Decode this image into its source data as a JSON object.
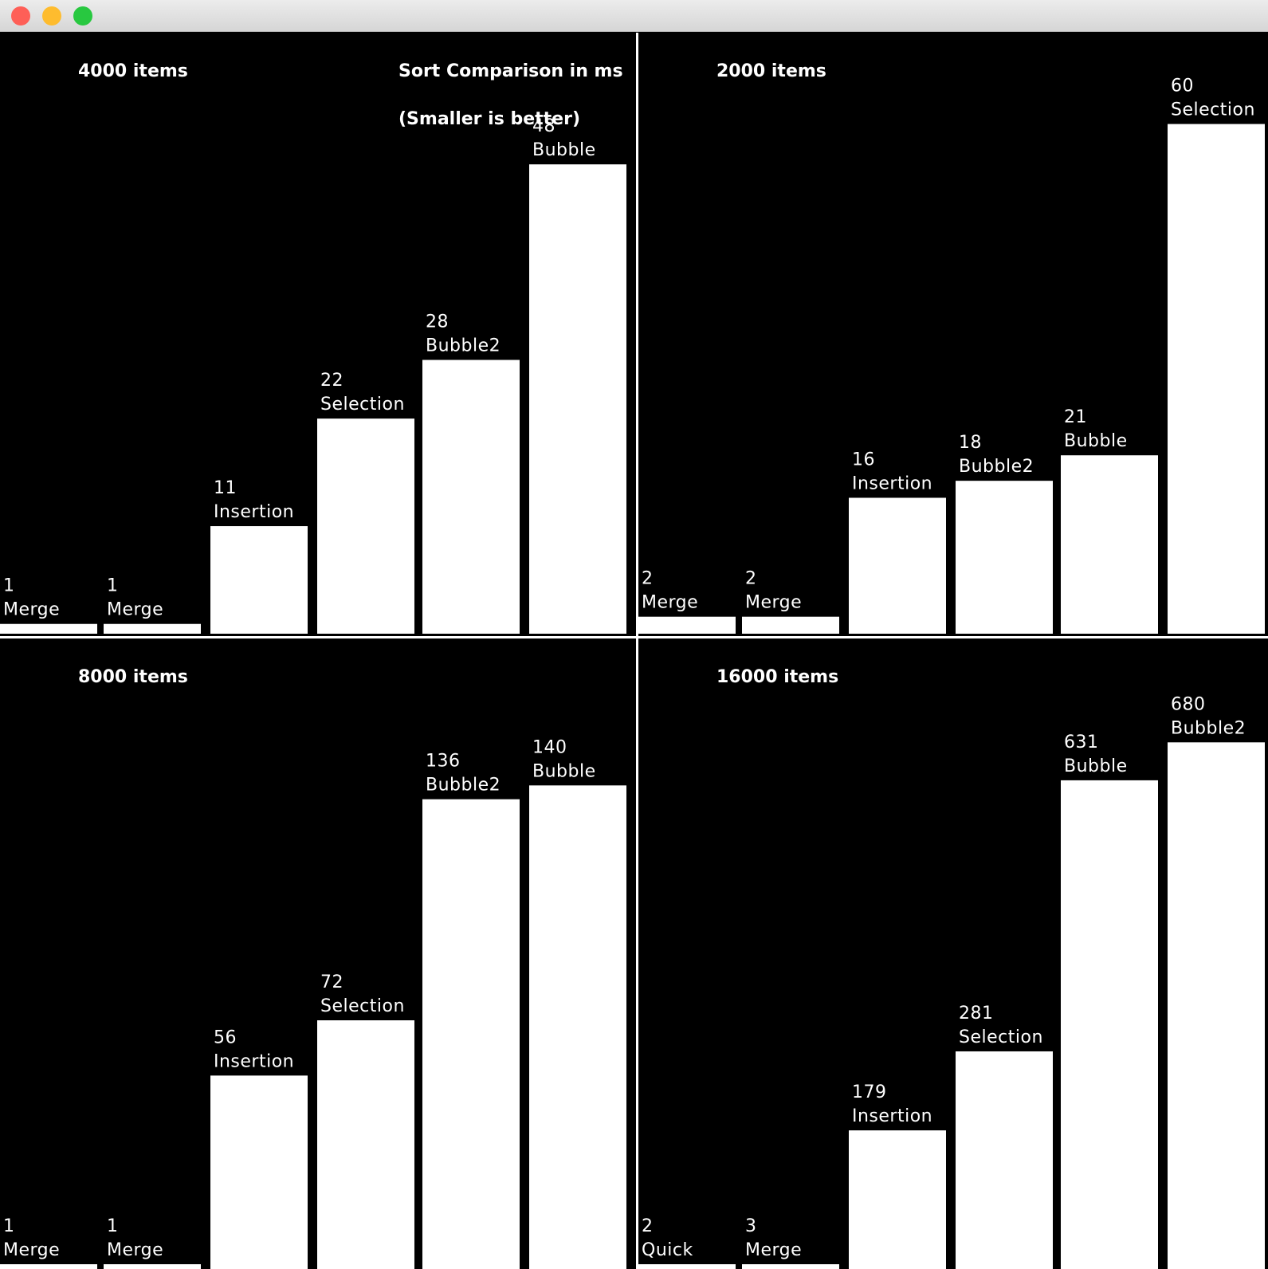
{
  "window": {
    "controls": {
      "close_color": "#fe5f57",
      "minimize_color": "#febc2e",
      "maximize_color": "#28c840"
    }
  },
  "heading": {
    "line1": "Sort Comparison in ms",
    "line2": "(Smaller is better)"
  },
  "colors": {
    "background": "#000000",
    "bar": "#ffffff",
    "text": "#ffffff"
  },
  "chart_data": [
    {
      "type": "bar",
      "title": "4000 items",
      "categories": [
        "Merge",
        "Merge",
        "Insertion",
        "Selection",
        "Bubble2",
        "Bubble"
      ],
      "values": [
        1,
        1,
        11,
        22,
        28,
        48
      ],
      "ylim": [
        0,
        60
      ]
    },
    {
      "type": "bar",
      "title": "2000 items",
      "categories": [
        "Merge",
        "Merge",
        "Insertion",
        "Bubble2",
        "Bubble",
        "Selection"
      ],
      "values": [
        2,
        2,
        16,
        18,
        21,
        60
      ],
      "ylim": [
        0,
        70
      ]
    },
    {
      "type": "bar",
      "title": "8000 items",
      "categories": [
        "Merge",
        "Merge",
        "Insertion",
        "Selection",
        "Bubble2",
        "Bubble"
      ],
      "values": [
        1,
        1,
        56,
        72,
        136,
        140
      ],
      "ylim": [
        0,
        180
      ]
    },
    {
      "type": "bar",
      "title": "16000 items",
      "categories": [
        "Quick",
        "Merge",
        "Insertion",
        "Selection",
        "Bubble",
        "Bubble2"
      ],
      "values": [
        2,
        3,
        179,
        281,
        631,
        680
      ],
      "ylim": [
        0,
        810
      ]
    }
  ]
}
